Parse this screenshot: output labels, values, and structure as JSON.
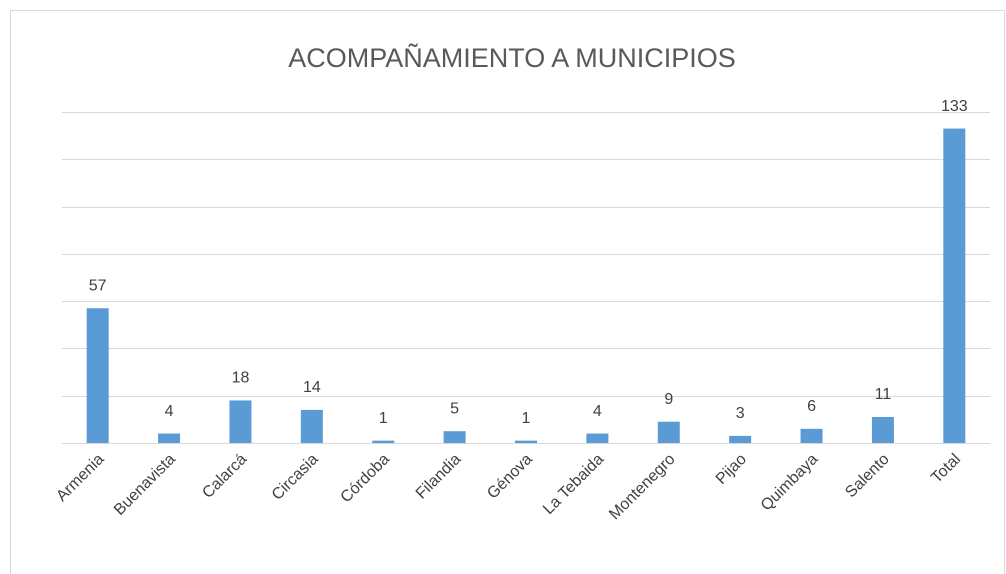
{
  "chart_data": {
    "type": "bar",
    "title": "ACOMPAÑAMIENTO A MUNICIPIOS",
    "categories": [
      "Armenia",
      "Buenavista",
      "Calarcá",
      "Circasia",
      "Córdoba",
      "Filandia",
      "Génova",
      "La Tebaida",
      "Montenegro",
      "Pijao",
      "Quimbaya",
      "Salento",
      "Total"
    ],
    "values": [
      57,
      4,
      18,
      14,
      1,
      5,
      1,
      4,
      9,
      3,
      6,
      11,
      133
    ],
    "color": "#5b9bd5",
    "ylim": [
      0,
      140
    ],
    "yticks": [
      0,
      20,
      40,
      60,
      80,
      100,
      120,
      140
    ],
    "grid": true
  }
}
